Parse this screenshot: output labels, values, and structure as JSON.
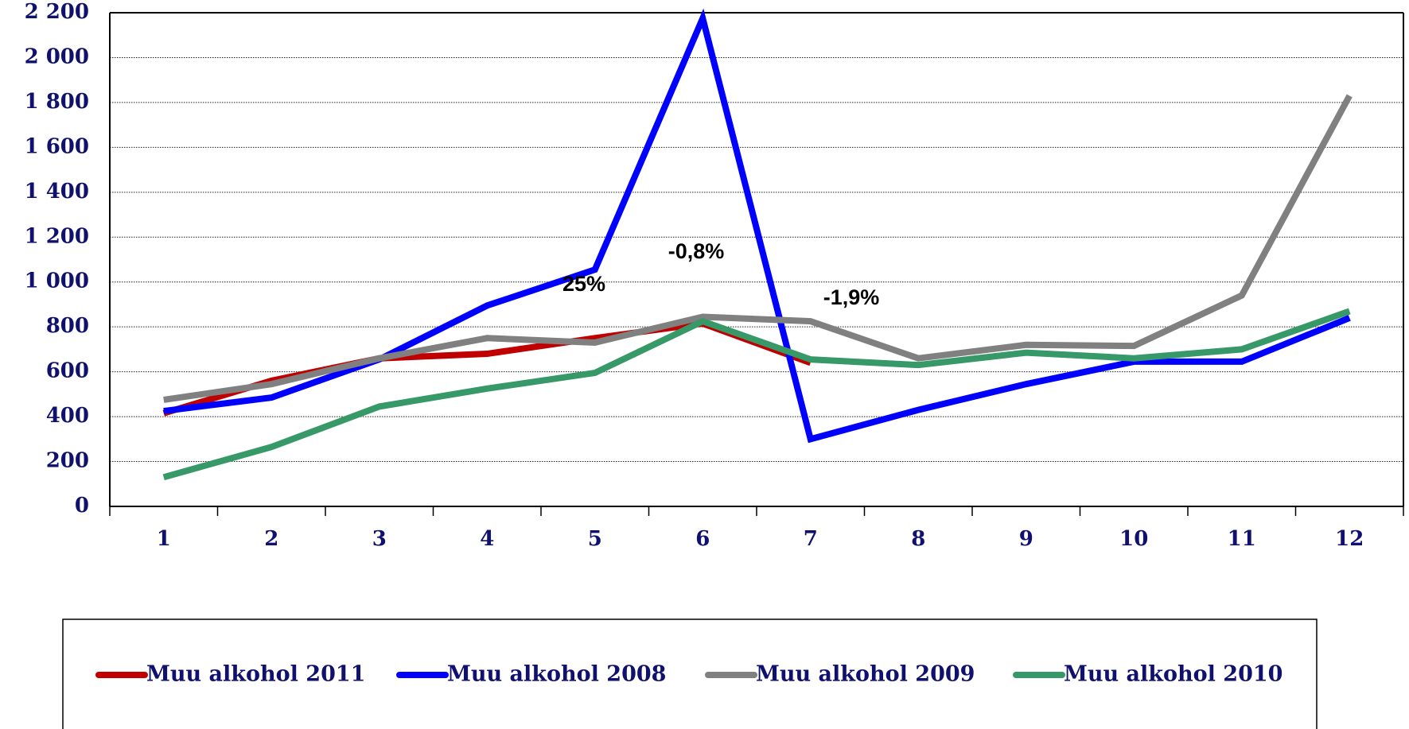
{
  "chart_data": {
    "type": "line",
    "categories": [
      "1",
      "2",
      "3",
      "4",
      "5",
      "6",
      "7",
      "8",
      "9",
      "10",
      "11",
      "12"
    ],
    "series": [
      {
        "name": "Muu alkohol 2011",
        "color": "#c00000",
        "values": [
          415,
          560,
          660,
          680,
          750,
          815,
          640,
          null,
          null,
          null,
          null,
          null
        ]
      },
      {
        "name": "Muu alkohol 2008",
        "color": "#0000ff",
        "values": [
          425,
          485,
          655,
          895,
          1055,
          2175,
          300,
          430,
          545,
          645,
          645,
          840
        ]
      },
      {
        "name": "Muu alkohol 2009",
        "color": "#808080",
        "values": [
          475,
          545,
          660,
          750,
          730,
          845,
          825,
          660,
          720,
          715,
          940,
          1830
        ]
      },
      {
        "name": "Muu alkohol 2010",
        "color": "#379868",
        "values": [
          130,
          265,
          445,
          525,
          595,
          825,
          655,
          630,
          685,
          660,
          700,
          870
        ]
      }
    ],
    "ylim": [
      0,
      2200
    ],
    "yticks": [
      0,
      200,
      400,
      600,
      800,
      {
        "value": 1000,
        "label": "1 000"
      },
      {
        "value": 1200,
        "label": "1 200"
      },
      {
        "value": 1400,
        "label": "1 400"
      },
      {
        "value": 1600,
        "label": "1 600"
      },
      {
        "value": 1800,
        "label": "1 800"
      },
      {
        "value": 2000,
        "label": "2 000"
      },
      {
        "value": 2200,
        "label": "2 200"
      }
    ],
    "grid": true,
    "legend": "bottom",
    "annotations": [
      "25%",
      "-0,8%",
      "-1,9%"
    ]
  }
}
